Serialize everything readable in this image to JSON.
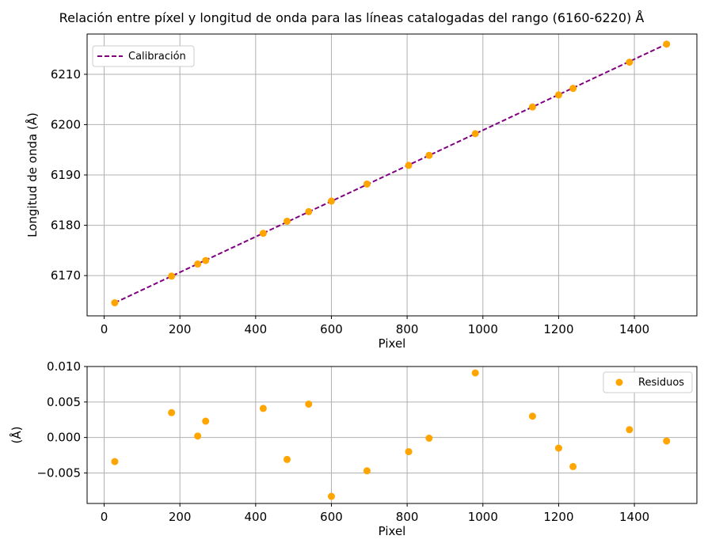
{
  "chart_data": [
    {
      "type": "line",
      "title": "Relación entre píxel y longitud de onda para las líneas catalogadas del rango (6160-6220) Å",
      "xlabel": "Pixel",
      "ylabel": "Longitud de onda (Å)",
      "xlim": [
        -45,
        1565
      ],
      "ylim": [
        6162,
        6218
      ],
      "x_ticks": [
        0,
        200,
        400,
        600,
        800,
        1000,
        1200,
        1400
      ],
      "y_ticks": [
        6170,
        6180,
        6190,
        6200,
        6210
      ],
      "grid": true,
      "legend_position": "top-left",
      "colors": {
        "points": "#ffa500",
        "fit_line": "#800080"
      },
      "series": [
        {
          "name": "Calibración",
          "kind": "dashed-line",
          "x": [
            28,
            1485
          ],
          "y": [
            6164.6,
            6216.0
          ]
        },
        {
          "kind": "scatter",
          "x": [
            28,
            178,
            247,
            268,
            420,
            483,
            540,
            600,
            694,
            804,
            858,
            980,
            1131,
            1200,
            1238,
            1387,
            1485
          ],
          "y": [
            6164.6,
            6169.9,
            6172.3,
            6173.0,
            6178.4,
            6180.8,
            6182.7,
            6184.8,
            6188.2,
            6191.9,
            6193.9,
            6198.2,
            6203.5,
            6205.9,
            6207.2,
            6212.4,
            6216.0
          ]
        }
      ]
    },
    {
      "type": "scatter",
      "xlabel": "Pixel",
      "ylabel": "(Å)",
      "xlim": [
        -45,
        1565
      ],
      "ylim": [
        -0.0093,
        0.01
      ],
      "x_ticks": [
        0,
        200,
        400,
        600,
        800,
        1000,
        1200,
        1400
      ],
      "y_ticks": [
        "0.010",
        "0.005",
        "0.000",
        "−0.005"
      ],
      "y_tick_values": [
        0.01,
        0.005,
        0.0,
        -0.005
      ],
      "grid": true,
      "legend_position": "top-right",
      "colors": {
        "points": "#ffa500"
      },
      "series": [
        {
          "name": "Residuos",
          "x": [
            28,
            178,
            247,
            268,
            420,
            483,
            540,
            600,
            694,
            804,
            858,
            980,
            1131,
            1200,
            1238,
            1387,
            1485
          ],
          "y": [
            -0.0034,
            0.0035,
            0.0002,
            0.0023,
            0.0041,
            -0.0031,
            0.0047,
            -0.0083,
            -0.0047,
            -0.002,
            -0.0001,
            0.0091,
            0.003,
            -0.0015,
            -0.0041,
            0.0011,
            -0.0005
          ]
        }
      ]
    }
  ]
}
